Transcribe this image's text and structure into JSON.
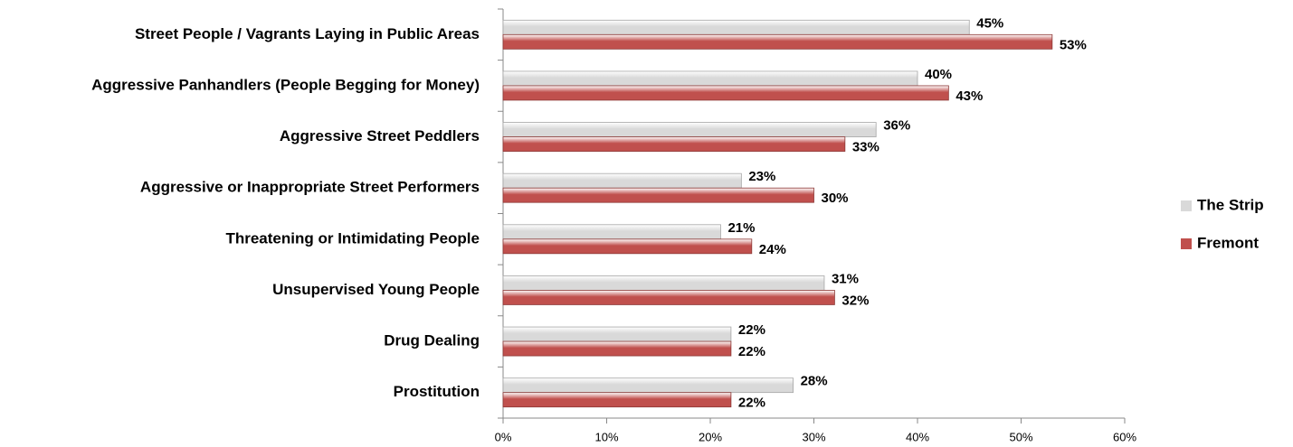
{
  "chart_data": {
    "type": "hbar",
    "categories": [
      "Street People / Vagrants Laying in Public Areas",
      "Aggressive Panhandlers (People Begging for Money)",
      "Aggressive Street Peddlers",
      "Aggressive or Inappropriate Street Performers",
      "Threatening or Intimidating People",
      "Unsupervised Young People",
      "Drug Dealing",
      "Prostitution"
    ],
    "series": [
      {
        "name": "The Strip",
        "color": "#d9d9d9",
        "values": [
          45,
          40,
          36,
          23,
          21,
          31,
          22,
          28
        ],
        "value_labels": [
          "45%",
          "40%",
          "36%",
          "23%",
          "21%",
          "31%",
          "22%",
          "28%"
        ]
      },
      {
        "name": "Fremont",
        "color": "#c0504d",
        "values": [
          53,
          43,
          33,
          30,
          24,
          32,
          22,
          22
        ],
        "value_labels": [
          "53%",
          "43%",
          "33%",
          "30%",
          "24%",
          "32%",
          "22%",
          "22%"
        ]
      }
    ],
    "xlim": [
      0,
      60
    ],
    "xticks": [
      {
        "value": 0,
        "label": "0%"
      },
      {
        "value": 10,
        "label": "10%"
      },
      {
        "value": 20,
        "label": "20%"
      },
      {
        "value": 30,
        "label": "30%"
      },
      {
        "value": 40,
        "label": "40%"
      },
      {
        "value": 50,
        "label": "50%"
      },
      {
        "value": 60,
        "label": "60%"
      }
    ],
    "legend": "right"
  }
}
